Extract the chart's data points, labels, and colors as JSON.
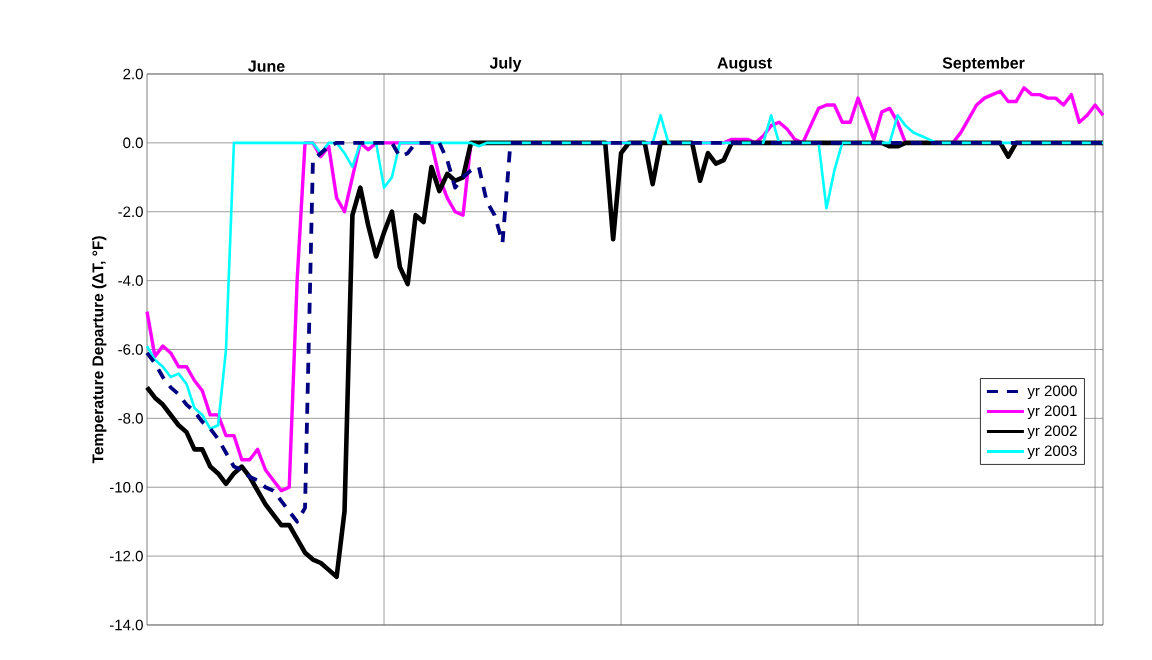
{
  "chart_data": {
    "type": "line",
    "ylabel": "Temperature Departure (ΔT, °F)",
    "annotations": [
      "June",
      "July",
      "August",
      "September"
    ],
    "categories": [
      null,
      null,
      null,
      null,
      null,
      null,
      null,
      null,
      null,
      null,
      null,
      null,
      null,
      null,
      null,
      null,
      null,
      null,
      null,
      null,
      null,
      null,
      null,
      null,
      null,
      null,
      null,
      null,
      null,
      null,
      null,
      null,
      null,
      null,
      null,
      null,
      null,
      null,
      null,
      null,
      null,
      null,
      null,
      null,
      null,
      null,
      null,
      null,
      null,
      null,
      null,
      null,
      null,
      null,
      null,
      null,
      null,
      null,
      null,
      null,
      null,
      null,
      null,
      null,
      null,
      null,
      null,
      null,
      null,
      null,
      null,
      null,
      null,
      null,
      null,
      null,
      null,
      null,
      null,
      null,
      null,
      null,
      null,
      null,
      null,
      null,
      null,
      null,
      null,
      null,
      null,
      null,
      null,
      null,
      null,
      null,
      null,
      null,
      null,
      null,
      null,
      null,
      null,
      null,
      null,
      null,
      null,
      null,
      null,
      null,
      null,
      null,
      null,
      null,
      null,
      null,
      null,
      null,
      null,
      null,
      null,
      null
    ],
    "ylim": [
      -14,
      2
    ],
    "yticks": [
      {
        "value": -14,
        "label": "-14.0"
      },
      {
        "value": -12,
        "label": "-12.0"
      },
      {
        "value": -10,
        "label": "-10.0"
      },
      {
        "value": -8,
        "label": "-8.0"
      },
      {
        "value": -6,
        "label": "-6.0"
      },
      {
        "value": -4,
        "label": "-4.0"
      },
      {
        "value": -2,
        "label": "-2.0"
      },
      {
        "value": 0,
        "label": "0.0"
      },
      {
        "value": 2,
        "label": "2.0"
      }
    ],
    "grid": true,
    "legend": "right",
    "tick_labels": "y",
    "series": [
      {
        "name": "yr 2000",
        "color": "#000080",
        "line_style": "dashed",
        "values": [
          -6.1,
          -6.4,
          -6.8,
          -7.1,
          -7.3,
          -7.6,
          -7.8,
          -8.1,
          -8.3,
          -8.6,
          -9.0,
          -9.4,
          -9.5,
          -9.7,
          -9.8,
          -10.0,
          -10.1,
          -10.4,
          -10.7,
          -11.0,
          -10.6,
          -0.5,
          -0.3,
          -0.1,
          0,
          0,
          0,
          0,
          0,
          0,
          0,
          0,
          -0.4,
          -0.3,
          0,
          0,
          0,
          0,
          -0.5,
          -1.3,
          -1.0,
          -0.8,
          -0.7,
          -1.7,
          -2.1,
          -2.9,
          0,
          0,
          0,
          0,
          0,
          0,
          0,
          0,
          0,
          0,
          0,
          0,
          0,
          0,
          0,
          0,
          0,
          0,
          0,
          0,
          0,
          0,
          0,
          0,
          0,
          0,
          0,
          0,
          0,
          0,
          0,
          0,
          0,
          0,
          0,
          0,
          0,
          0,
          0,
          0,
          0,
          0,
          0,
          0,
          0,
          0,
          0,
          0,
          0,
          0,
          0,
          0,
          0,
          0,
          0,
          0,
          0,
          0,
          0,
          0,
          0,
          0,
          0,
          0,
          0,
          0,
          0,
          0,
          0,
          0,
          0,
          0,
          0,
          0,
          0,
          0
        ]
      },
      {
        "name": "yr 2001",
        "color": "#ff00ff",
        "values": [
          -4.9,
          -6.2,
          -5.9,
          -6.1,
          -6.5,
          -6.5,
          -6.9,
          -7.2,
          -7.9,
          -7.9,
          -8.5,
          -8.5,
          -9.2,
          -9.2,
          -8.9,
          -9.5,
          -9.8,
          -10.1,
          -10.0,
          -4.0,
          0,
          0,
          -0.4,
          -0.1,
          -1.6,
          -2.0,
          -1.0,
          0,
          -0.2,
          0,
          0,
          0,
          0,
          0,
          0,
          0,
          0,
          -1.0,
          -1.6,
          -2.0,
          -2.1,
          0,
          0,
          0,
          0,
          0,
          0,
          0,
          0,
          0,
          0,
          0,
          0,
          0,
          0,
          0,
          0,
          0,
          0,
          0,
          0,
          0,
          0,
          0,
          0,
          0,
          0,
          0,
          0,
          0,
          0,
          0,
          0,
          0,
          0.1,
          0.1,
          0.1,
          0,
          0.2,
          0.5,
          0.6,
          0.4,
          0.1,
          0,
          0.5,
          1.0,
          1.1,
          1.1,
          0.6,
          0.6,
          1.3,
          0.7,
          0.1,
          0.9,
          1.0,
          0.6,
          0,
          0,
          0,
          0,
          0,
          0,
          0,
          0.3,
          0.7,
          1.1,
          1.3,
          1.4,
          1.5,
          1.2,
          1.2,
          1.6,
          1.4,
          1.4,
          1.3,
          1.3,
          1.1,
          1.4,
          0.6,
          0.8,
          1.1,
          0.8
        ]
      },
      {
        "name": "yr 2002",
        "color": "#000000",
        "values": [
          -7.1,
          -7.4,
          -7.6,
          -7.9,
          -8.2,
          -8.4,
          -8.9,
          -8.9,
          -9.4,
          -9.6,
          -9.9,
          -9.6,
          -9.4,
          -9.7,
          -10.1,
          -10.5,
          -10.8,
          -11.1,
          -11.1,
          -11.5,
          -11.9,
          -12.1,
          -12.2,
          -12.4,
          -12.6,
          -10.7,
          -2.1,
          -1.3,
          -2.4,
          -3.3,
          -2.6,
          -2.0,
          -3.6,
          -4.1,
          -2.1,
          -2.3,
          -0.7,
          -1.4,
          -0.9,
          -1.1,
          -1.0,
          0,
          0,
          0,
          0,
          0,
          0,
          0,
          0,
          0,
          0,
          0,
          0,
          0,
          0,
          0,
          0,
          0,
          0,
          -2.8,
          -0.3,
          0,
          0,
          0,
          -1.2,
          0,
          0,
          0,
          0,
          0,
          -1.1,
          -0.3,
          -0.6,
          -0.5,
          0,
          0,
          0,
          0,
          0,
          0,
          0,
          0,
          0,
          0,
          0,
          0,
          0,
          0,
          0,
          0,
          0,
          0,
          0,
          0,
          -0.1,
          -0.1,
          0,
          0,
          0,
          0,
          0,
          0,
          0,
          0,
          0,
          0,
          0,
          0,
          0,
          -0.4,
          0,
          0,
          0,
          0,
          0,
          0,
          0,
          0,
          0,
          0,
          0,
          0
        ]
      },
      {
        "name": "yr 2003",
        "color": "#00ffff",
        "values": [
          -5.9,
          -6.3,
          -6.5,
          -6.8,
          -6.7,
          -7.0,
          -7.7,
          -7.9,
          -8.3,
          -8.2,
          -6.0,
          0,
          0,
          0,
          0,
          0,
          0,
          0,
          0,
          0,
          0,
          0,
          -0.3,
          0,
          0,
          -0.3,
          -0.7,
          0,
          0,
          0,
          -1.3,
          -1.0,
          0,
          0,
          0,
          0,
          0,
          0,
          0,
          0,
          0,
          0,
          -0.1,
          0,
          0,
          0,
          0,
          0,
          0,
          0,
          0,
          0,
          0,
          0,
          0,
          0,
          0,
          0,
          0,
          0,
          0,
          0,
          0,
          0,
          0,
          0.8,
          0,
          0,
          0,
          0,
          0,
          0,
          0,
          0,
          0,
          0,
          0,
          0,
          0,
          0.8,
          0,
          0,
          0,
          0,
          0,
          0,
          -1.9,
          -0.8,
          0,
          0,
          0,
          0,
          0,
          0,
          0,
          0.8,
          0.5,
          0.3,
          0.2,
          0.1,
          0,
          0,
          0,
          0,
          0,
          0,
          0,
          0,
          0,
          0,
          0,
          0,
          0,
          0,
          0,
          0,
          0,
          0,
          0,
          0,
          0,
          0
        ]
      }
    ]
  }
}
